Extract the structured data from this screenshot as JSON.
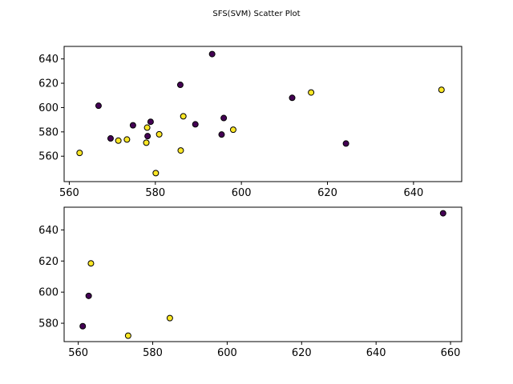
{
  "figure": {
    "title": "SFS(SVM) Scatter Plot"
  },
  "colors": {
    "class_0": "#440154",
    "class_1": "#fde725",
    "edge": "#000000"
  },
  "chart_data": [
    {
      "type": "scatter",
      "title": "",
      "xlabel": "",
      "ylabel": "",
      "xlim": [
        558.8,
        651.2
      ],
      "ylim": [
        539.1,
        650.3
      ],
      "xticks": [
        560,
        580,
        600,
        620,
        640
      ],
      "yticks": [
        560,
        580,
        600,
        620,
        640
      ],
      "grid": false,
      "legend": "none",
      "points": [
        {
          "x": 593.2,
          "y": 644.0,
          "class": 0
        },
        {
          "x": 585.8,
          "y": 618.7,
          "class": 0
        },
        {
          "x": 566.8,
          "y": 601.5,
          "class": 0
        },
        {
          "x": 611.8,
          "y": 608.0,
          "class": 0
        },
        {
          "x": 574.8,
          "y": 585.4,
          "class": 0
        },
        {
          "x": 578.9,
          "y": 588.3,
          "class": 0
        },
        {
          "x": 595.9,
          "y": 591.4,
          "class": 0
        },
        {
          "x": 589.3,
          "y": 586.2,
          "class": 0
        },
        {
          "x": 569.6,
          "y": 574.6,
          "class": 0
        },
        {
          "x": 578.2,
          "y": 576.5,
          "class": 0
        },
        {
          "x": 595.4,
          "y": 577.8,
          "class": 0
        },
        {
          "x": 624.3,
          "y": 570.4,
          "class": 0
        },
        {
          "x": 646.5,
          "y": 614.6,
          "class": 1
        },
        {
          "x": 616.2,
          "y": 612.4,
          "class": 1
        },
        {
          "x": 586.5,
          "y": 592.8,
          "class": 1
        },
        {
          "x": 598.1,
          "y": 581.8,
          "class": 1
        },
        {
          "x": 578.1,
          "y": 583.5,
          "class": 1
        },
        {
          "x": 580.9,
          "y": 578.0,
          "class": 1
        },
        {
          "x": 571.4,
          "y": 572.8,
          "class": 1
        },
        {
          "x": 573.4,
          "y": 573.7,
          "class": 1
        },
        {
          "x": 577.9,
          "y": 571.1,
          "class": 1
        },
        {
          "x": 562.4,
          "y": 562.7,
          "class": 1
        },
        {
          "x": 585.9,
          "y": 564.7,
          "class": 1
        },
        {
          "x": 580.1,
          "y": 546.1,
          "class": 1
        }
      ]
    },
    {
      "type": "scatter",
      "title": "",
      "xlabel": "",
      "ylabel": "",
      "xlim": [
        556.2,
        663.0
      ],
      "ylim": [
        568.2,
        654.6
      ],
      "xticks": [
        560,
        580,
        600,
        620,
        640,
        660
      ],
      "yticks": [
        580,
        600,
        620,
        640
      ],
      "grid": false,
      "legend": "none",
      "points": [
        {
          "x": 658.0,
          "y": 650.7,
          "class": 0
        },
        {
          "x": 562.8,
          "y": 597.6,
          "class": 0
        },
        {
          "x": 561.2,
          "y": 578.1,
          "class": 0
        },
        {
          "x": 563.4,
          "y": 618.5,
          "class": 1
        },
        {
          "x": 584.6,
          "y": 583.3,
          "class": 1
        },
        {
          "x": 573.4,
          "y": 572.0,
          "class": 1
        }
      ]
    }
  ]
}
